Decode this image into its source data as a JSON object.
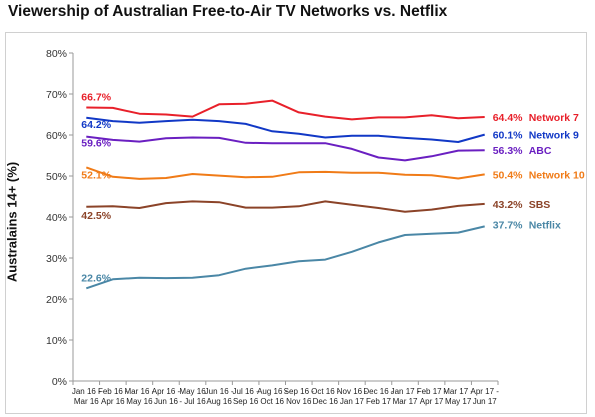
{
  "chart_data": {
    "type": "line",
    "title": "Viewership of Australian Free-to-Air TV Networks vs. Netflix",
    "xlabel": "",
    "ylabel": "Australains 14+ (%)",
    "ylim": [
      0,
      80
    ],
    "yticks": [
      "0%",
      "10%",
      "20%",
      "30%",
      "40%",
      "50%",
      "60%",
      "70%",
      "80%"
    ],
    "grid": false,
    "legend": "inline-right",
    "categories": [
      [
        "Jan 16 -",
        "Mar 16"
      ],
      [
        "Feb 16 -",
        "Apr 16"
      ],
      [
        "Mar 16 -",
        "May 16"
      ],
      [
        "Apr 16 -",
        "Jun 16"
      ],
      [
        "May 16",
        "- Jul 16"
      ],
      [
        "Jun 16 -",
        "Aug 16"
      ],
      [
        "Jul 16 -",
        "Sep 16"
      ],
      [
        "Aug 16 -",
        "Oct 16"
      ],
      [
        "Sep 16 -",
        "Nov 16"
      ],
      [
        "Oct 16 -",
        "Dec 16"
      ],
      [
        "Nov 16 -",
        "Jan 17"
      ],
      [
        "Dec 16 -",
        "Feb 17"
      ],
      [
        "Jan 17 -",
        "Mar 17"
      ],
      [
        "Feb 17 -",
        "Apr 17"
      ],
      [
        "Mar 17 -",
        "May 17"
      ],
      [
        "Apr 17 -",
        "Jun 17"
      ]
    ],
    "series": [
      {
        "name": "Network 7",
        "color": "#e8202a",
        "start_label": "66.7%",
        "end_label": "64.4%",
        "values": [
          66.7,
          66.6,
          65.2,
          65.0,
          64.5,
          67.5,
          67.6,
          68.4,
          65.5,
          64.5,
          63.8,
          64.3,
          64.3,
          64.8,
          64.1,
          64.4
        ]
      },
      {
        "name": "Network 9",
        "color": "#1138c6",
        "start_label": "64.2%",
        "end_label": "60.1%",
        "values": [
          64.2,
          63.4,
          63.0,
          63.4,
          63.7,
          63.4,
          62.7,
          60.9,
          60.3,
          59.4,
          59.8,
          59.8,
          59.3,
          58.9,
          58.3,
          60.1
        ]
      },
      {
        "name": "ABC",
        "color": "#6a1fc1",
        "start_label": "59.6%",
        "end_label": "56.3%",
        "values": [
          59.6,
          58.8,
          58.4,
          59.2,
          59.4,
          59.3,
          58.1,
          58.0,
          58.0,
          58.0,
          56.6,
          54.5,
          53.8,
          54.8,
          56.2,
          56.3
        ]
      },
      {
        "name": "Network 10",
        "color": "#f07b17",
        "start_label": "52.1%",
        "end_label": "50.4%",
        "values": [
          52.1,
          49.8,
          49.3,
          49.5,
          50.5,
          50.1,
          49.7,
          49.8,
          50.9,
          51.0,
          50.8,
          50.8,
          50.3,
          50.2,
          49.4,
          50.4
        ]
      },
      {
        "name": "SBS",
        "color": "#8b4328",
        "start_label": "42.5%",
        "end_label": "43.2%",
        "values": [
          42.5,
          42.6,
          42.2,
          43.4,
          43.8,
          43.6,
          42.3,
          42.3,
          42.6,
          43.8,
          43.0,
          42.2,
          41.3,
          41.8,
          42.7,
          43.2
        ]
      },
      {
        "name": "Netflix",
        "color": "#4a87a6",
        "start_label": "22.6%",
        "end_label": "37.7%",
        "values": [
          22.6,
          24.8,
          25.2,
          25.1,
          25.2,
          25.8,
          27.4,
          28.2,
          29.2,
          29.6,
          31.5,
          33.8,
          35.6,
          35.9,
          36.2,
          37.7
        ]
      }
    ]
  }
}
